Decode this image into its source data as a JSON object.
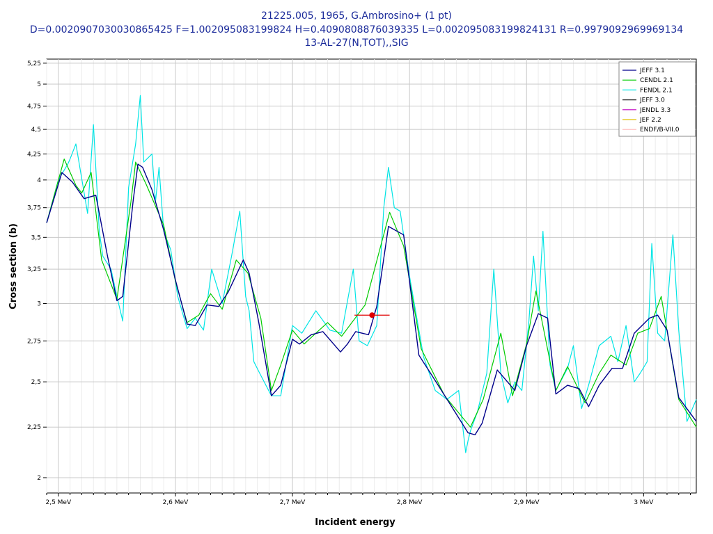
{
  "window": {
    "background": "#ffffff"
  },
  "chart_data": {
    "type": "line",
    "title": "21225.005, 1965, G.Ambrosino+ (1 pt)",
    "subtitle": "D=0.0020907030030865425 F=1.002095083199824 H=0.4090808876039335 L=0.002095083199824131 R=0.9979092969969134",
    "reaction": "13-AL-27(N,TOT),,SIG",
    "xlabel": "Incident energy",
    "ylabel": "Cross section (b)",
    "xlim": [
      2.49,
      3.045
    ],
    "ylim": [
      1.93,
      5.3
    ],
    "y_scale": "log",
    "grid": true,
    "legend_position": "top-right",
    "x_ticks": [
      {
        "value": 2.5,
        "label": "2,5 MeV"
      },
      {
        "value": 2.6,
        "label": "2,6 MeV"
      },
      {
        "value": 2.7,
        "label": "2,7 MeV"
      },
      {
        "value": 2.8,
        "label": "2,8 MeV"
      },
      {
        "value": 2.9,
        "label": "2,9 MeV"
      },
      {
        "value": 3.0,
        "label": "3 MeV"
      }
    ],
    "y_ticks": [
      {
        "value": 2.0,
        "label": "2"
      },
      {
        "value": 2.25,
        "label": "2,25"
      },
      {
        "value": 2.5,
        "label": "2,5"
      },
      {
        "value": 2.75,
        "label": "2,75"
      },
      {
        "value": 3.0,
        "label": "3"
      },
      {
        "value": 3.25,
        "label": "3,25"
      },
      {
        "value": 3.5,
        "label": "3,5"
      },
      {
        "value": 3.75,
        "label": "3,75"
      },
      {
        "value": 4.0,
        "label": "4"
      },
      {
        "value": 4.25,
        "label": "4,25"
      },
      {
        "value": 4.5,
        "label": "4,5"
      },
      {
        "value": 4.75,
        "label": "4,75"
      },
      {
        "value": 5.0,
        "label": "5"
      },
      {
        "value": 5.25,
        "label": "5,25"
      }
    ],
    "series": [
      {
        "name": "JEFF 3.1",
        "color": "#00008b",
        "x": [
          2.49,
          2.503,
          2.512,
          2.522,
          2.532,
          2.542,
          2.55,
          2.555,
          2.564,
          2.568,
          2.572,
          2.58,
          2.59,
          2.6,
          2.61,
          2.617,
          2.627,
          2.637,
          2.645,
          2.658,
          2.663,
          2.671,
          2.682,
          2.69,
          2.7,
          2.706,
          2.716,
          2.726,
          2.741,
          2.747,
          2.754,
          2.765,
          2.772,
          2.782,
          2.795,
          2.808,
          2.818,
          2.835,
          2.85,
          2.856,
          2.862,
          2.875,
          2.89,
          2.9,
          2.91,
          2.918,
          2.925,
          2.935,
          2.945,
          2.953,
          2.962,
          2.973,
          2.982,
          2.992,
          3.005,
          3.012,
          3.02,
          3.03,
          3.045
        ],
        "values": [
          3.62,
          4.07,
          3.98,
          3.83,
          3.86,
          3.35,
          3.02,
          3.05,
          3.82,
          4.15,
          4.12,
          3.91,
          3.56,
          3.17,
          2.86,
          2.85,
          2.99,
          2.98,
          3.08,
          3.32,
          3.22,
          2.88,
          2.42,
          2.48,
          2.76,
          2.73,
          2.79,
          2.81,
          2.68,
          2.73,
          2.81,
          2.79,
          2.98,
          3.59,
          3.52,
          2.66,
          2.55,
          2.37,
          2.22,
          2.21,
          2.27,
          2.57,
          2.45,
          2.72,
          2.93,
          2.9,
          2.43,
          2.48,
          2.46,
          2.36,
          2.48,
          2.58,
          2.58,
          2.8,
          2.9,
          2.92,
          2.82,
          2.41,
          2.28
        ]
      },
      {
        "name": "CENDL 2.1",
        "color": "#00cc00",
        "x": [
          2.49,
          2.505,
          2.515,
          2.52,
          2.528,
          2.537,
          2.55,
          2.562,
          2.566,
          2.575,
          2.59,
          2.6,
          2.61,
          2.62,
          2.63,
          2.64,
          2.652,
          2.662,
          2.673,
          2.682,
          2.69,
          2.7,
          2.71,
          2.72,
          2.73,
          2.742,
          2.762,
          2.783,
          2.795,
          2.81,
          2.83,
          2.852,
          2.863,
          2.878,
          2.888,
          2.9,
          2.908,
          2.925,
          2.935,
          2.95,
          2.962,
          2.972,
          2.985,
          2.995,
          3.005,
          3.015,
          3.03,
          3.045
        ],
        "values": [
          3.62,
          4.2,
          3.95,
          3.88,
          4.07,
          3.32,
          3.03,
          3.8,
          4.17,
          3.96,
          3.6,
          3.16,
          2.87,
          2.92,
          3.07,
          2.96,
          3.32,
          3.22,
          2.9,
          2.45,
          2.6,
          2.82,
          2.73,
          2.8,
          2.87,
          2.78,
          2.99,
          3.71,
          3.43,
          2.7,
          2.42,
          2.25,
          2.4,
          2.8,
          2.42,
          2.73,
          3.09,
          2.45,
          2.59,
          2.38,
          2.55,
          2.66,
          2.6,
          2.8,
          2.83,
          3.05,
          2.4,
          2.25
        ]
      },
      {
        "name": "FENDL 2.1",
        "color": "#00e5e5",
        "x": [
          2.49,
          2.5,
          2.508,
          2.51,
          2.515,
          2.525,
          2.53,
          2.535,
          2.538,
          2.545,
          2.55,
          2.555,
          2.56,
          2.566,
          2.57,
          2.573,
          2.58,
          2.583,
          2.586,
          2.59,
          2.596,
          2.602,
          2.61,
          2.617,
          2.624,
          2.631,
          2.64,
          2.648,
          2.655,
          2.658,
          2.66,
          2.663,
          2.667,
          2.672,
          2.682,
          2.69,
          2.7,
          2.708,
          2.72,
          2.732,
          2.742,
          2.752,
          2.757,
          2.764,
          2.772,
          2.778,
          2.782,
          2.787,
          2.792,
          2.8,
          2.812,
          2.822,
          2.832,
          2.842,
          2.848,
          2.85,
          2.852,
          2.858,
          2.866,
          2.872,
          2.878,
          2.884,
          2.89,
          2.896,
          2.902,
          2.906,
          2.91,
          2.914,
          2.92,
          2.925,
          2.935,
          2.94,
          2.947,
          2.953,
          2.962,
          2.972,
          2.978,
          2.985,
          2.992,
          2.997,
          3.003,
          3.007,
          3.012,
          3.018,
          3.025,
          3.03,
          3.037,
          3.045
        ],
        "values": [
          3.62,
          4.0,
          4.15,
          4.2,
          4.35,
          3.7,
          4.55,
          3.55,
          3.35,
          3.25,
          3.05,
          2.88,
          3.93,
          4.35,
          4.87,
          4.17,
          4.25,
          3.8,
          4.12,
          3.55,
          3.4,
          3.05,
          2.83,
          2.9,
          2.82,
          3.25,
          3.0,
          3.35,
          3.72,
          3.3,
          3.05,
          2.95,
          2.62,
          2.55,
          2.42,
          2.42,
          2.85,
          2.8,
          2.95,
          2.82,
          2.8,
          3.25,
          2.75,
          2.72,
          2.85,
          3.75,
          4.12,
          3.75,
          3.72,
          3.2,
          2.65,
          2.45,
          2.4,
          2.45,
          2.12,
          2.18,
          2.23,
          2.33,
          2.55,
          3.25,
          2.55,
          2.38,
          2.5,
          2.45,
          2.88,
          3.35,
          2.95,
          3.55,
          2.6,
          2.45,
          2.58,
          2.72,
          2.35,
          2.48,
          2.72,
          2.78,
          2.62,
          2.85,
          2.5,
          2.55,
          2.62,
          3.45,
          2.8,
          2.75,
          3.52,
          2.82,
          2.28,
          2.4
        ]
      },
      {
        "name": "JEFF 3.0",
        "color": "#1a1a1a"
      },
      {
        "name": "JENDL 3.3",
        "color": "#c000c0"
      },
      {
        "name": "JEF 2.2",
        "color": "#e0c000"
      },
      {
        "name": "ENDF/B-VII.0",
        "color": "#ffb6b6"
      }
    ],
    "experimental_point": {
      "x": 2.768,
      "y": 2.92,
      "x_err_low": 0.015,
      "x_err_high": 0.015,
      "color": "#e00000"
    }
  }
}
